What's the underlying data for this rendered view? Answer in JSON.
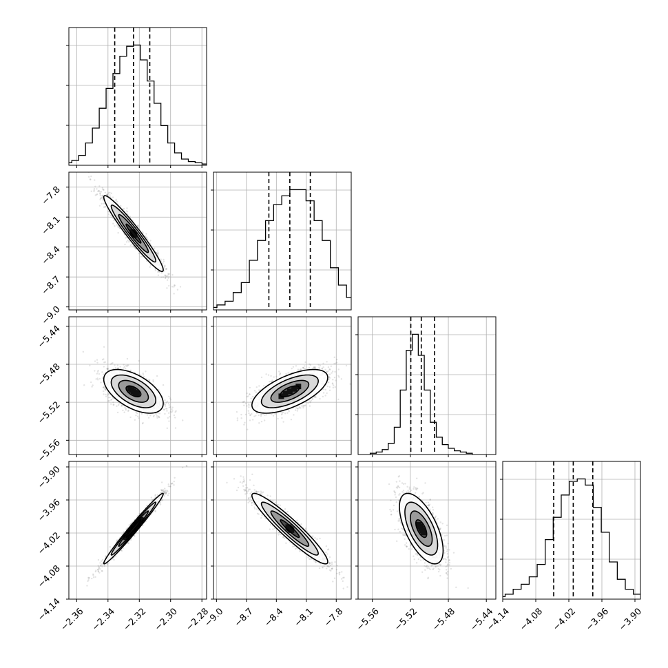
{
  "chart_data": {
    "type": "corner",
    "grid": true,
    "parameters": [
      {
        "range": [
          -2.365,
          -2.277
        ],
        "ticks": [
          -2.36,
          -2.34,
          -2.32,
          -2.3,
          -2.28
        ],
        "tick_labels": [
          "−2.36",
          "−2.34",
          "−2.32",
          "−2.30",
          "−2.28"
        ],
        "quantiles": [
          -2.3357,
          -2.3237,
          -2.3133
        ],
        "hist": [
          1,
          2,
          4,
          8,
          18,
          30,
          46,
          62,
          74,
          88,
          96,
          97,
          85,
          68,
          50,
          32,
          18,
          10,
          5,
          3,
          2,
          1
        ]
      },
      {
        "range": [
          -9.03,
          -7.65
        ],
        "ticks": [
          -9.0,
          -8.7,
          -8.4,
          -8.1,
          -7.8
        ],
        "tick_labels": [
          "−9.0",
          "−8.7",
          "−8.4",
          "−8.1",
          "−7.8"
        ],
        "quantiles": [
          -8.475,
          -8.265,
          -8.06
        ],
        "hist": [
          1,
          2,
          4,
          7,
          14,
          22,
          40,
          56,
          72,
          85,
          92,
          97,
          97,
          88,
          72,
          56,
          34,
          20,
          10,
          5,
          2,
          1
        ]
      },
      {
        "range": [
          -5.575,
          -5.43
        ],
        "ticks": [
          -5.56,
          -5.52,
          -5.48,
          -5.44
        ],
        "tick_labels": [
          "−5.56",
          "−5.52",
          "−5.48",
          "−5.44"
        ],
        "quantiles": [
          -5.5195,
          -5.5085,
          -5.4945
        ],
        "hist": [
          1,
          2,
          4,
          9,
          22,
          52,
          84,
          97,
          80,
          52,
          26,
          14,
          8,
          5,
          3,
          2,
          1
        ]
      },
      {
        "range": [
          -4.14,
          -3.89
        ],
        "ticks": [
          -4.14,
          -4.08,
          -4.02,
          -3.96,
          -3.9
        ],
        "tick_labels": [
          "−4.14",
          "−4.08",
          "−4.02",
          "−3.96",
          "−3.90"
        ],
        "quantiles": [
          -4.0475,
          -4.012,
          -3.9765
        ],
        "hist": [
          1,
          2,
          4,
          8,
          12,
          18,
          28,
          48,
          66,
          84,
          95,
          97,
          92,
          74,
          54,
          30,
          16,
          8,
          4,
          2,
          1
        ]
      }
    ],
    "pairs": [
      {
        "row": 1,
        "col": 0,
        "mean": [
          -2.3237,
          -8.265
        ],
        "sd": [
          0.0095,
          0.19
        ],
        "rho": -0.96
      },
      {
        "row": 2,
        "col": 0,
        "mean": [
          -2.3237,
          -5.5085
        ],
        "sd": [
          0.0095,
          0.0115
        ],
        "rho": -0.55
      },
      {
        "row": 2,
        "col": 1,
        "mean": [
          -8.265,
          -5.5085
        ],
        "sd": [
          0.19,
          0.0115
        ],
        "rho": 0.63
      },
      {
        "row": 3,
        "col": 0,
        "mean": [
          -2.3237,
          -4.012
        ],
        "sd": [
          0.0095,
          0.032
        ],
        "rho": 0.985
      },
      {
        "row": 3,
        "col": 1,
        "mean": [
          -8.265,
          -4.012
        ],
        "sd": [
          0.19,
          0.032
        ],
        "rho": -0.94
      },
      {
        "row": 3,
        "col": 2,
        "mean": [
          -5.5085,
          -4.012
        ],
        "sd": [
          0.0115,
          0.032
        ],
        "rho": -0.62
      }
    ],
    "contour_levels_sigma": [
      0.5,
      1.0,
      1.5,
      2.0
    ],
    "colors": {
      "line": "#000000",
      "points": "#7f7f7f",
      "grid": "#b0b0b0",
      "fill": "#ffffff"
    }
  }
}
